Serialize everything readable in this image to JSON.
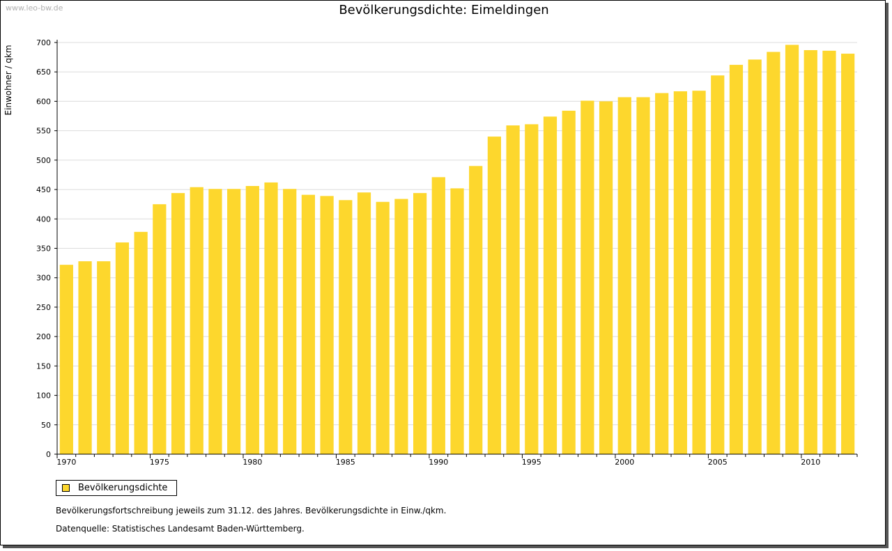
{
  "watermark": "www.leo-bw.de",
  "legend": {
    "label": "Bevölkerungsdichte",
    "color": "#fdd72d"
  },
  "notes": {
    "line1": "Bevölkerungsfortschreibung jeweils zum 31.12. des Jahres. Bevölkerungsdichte in Einw./qkm.",
    "line2": "Datenquelle: Statistisches Landesamt Baden-Württemberg."
  },
  "chart_data": {
    "type": "bar",
    "title": "Bevölkerungsdichte: Eimeldingen",
    "xlabel": "",
    "ylabel": "Einwohner / qkm",
    "ylim": [
      0,
      700
    ],
    "yticks": [
      0,
      50,
      100,
      150,
      200,
      250,
      300,
      350,
      400,
      450,
      500,
      550,
      600,
      650,
      700
    ],
    "xtick_labels": [
      "1970",
      "1975",
      "1980",
      "1985",
      "1990",
      "1995",
      "2000",
      "2005",
      "2010"
    ],
    "grid": true,
    "legend_position": "bottom-left",
    "bar_color": "#fdd72d",
    "categories": [
      1970,
      1971,
      1972,
      1973,
      1974,
      1975,
      1976,
      1977,
      1978,
      1979,
      1980,
      1981,
      1982,
      1983,
      1984,
      1985,
      1986,
      1987,
      1988,
      1989,
      1990,
      1991,
      1992,
      1993,
      1994,
      1995,
      1996,
      1997,
      1998,
      1999,
      2000,
      2001,
      2002,
      2003,
      2004,
      2005,
      2006,
      2007,
      2008,
      2009,
      2010,
      2011,
      2012
    ],
    "series": [
      {
        "name": "Bevölkerungsdichte",
        "values": [
          322,
          328,
          328,
          360,
          378,
          425,
          444,
          454,
          451,
          451,
          456,
          462,
          451,
          441,
          439,
          432,
          445,
          429,
          434,
          444,
          471,
          452,
          490,
          540,
          559,
          561,
          574,
          584,
          601,
          600,
          607,
          607,
          614,
          617,
          618,
          644,
          662,
          671,
          684,
          696,
          687,
          686,
          681
        ]
      }
    ]
  }
}
